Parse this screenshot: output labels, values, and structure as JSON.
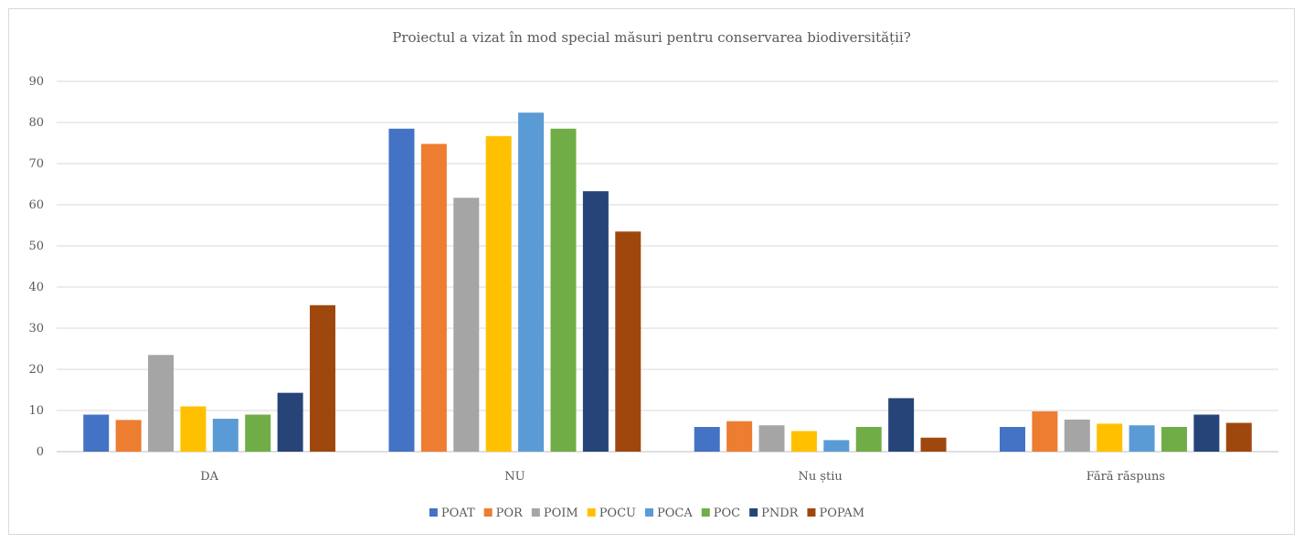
{
  "chart_data": {
    "type": "bar",
    "title": "Proiectul a vizat în mod special măsuri pentru conservarea biodiversității?",
    "xlabel": "",
    "ylabel": "",
    "ylim": [
      0,
      90
    ],
    "yticks": [
      0,
      10,
      20,
      30,
      40,
      50,
      60,
      70,
      80,
      90
    ],
    "grid": true,
    "legend_position": "bottom",
    "categories": [
      "DA",
      "NU",
      "Nu știu",
      "Fără răspuns"
    ],
    "series": [
      {
        "name": "POAT",
        "color": "#4472c4",
        "values": [
          9,
          78.5,
          6,
          6
        ]
      },
      {
        "name": "POR",
        "color": "#ed7d31",
        "values": [
          7.7,
          74.8,
          7.4,
          9.8
        ]
      },
      {
        "name": "POIM",
        "color": "#a5a5a5",
        "values": [
          23.5,
          61.7,
          6.4,
          7.8
        ]
      },
      {
        "name": "POCU",
        "color": "#ffc000",
        "values": [
          11,
          76.7,
          5,
          6.8
        ]
      },
      {
        "name": "POCA",
        "color": "#5b9bd5",
        "values": [
          8,
          82.4,
          2.8,
          6.4
        ]
      },
      {
        "name": "POC",
        "color": "#70ad47",
        "values": [
          9,
          78.5,
          6,
          6
        ]
      },
      {
        "name": "PNDR",
        "color": "#264478",
        "values": [
          14.3,
          63.3,
          13,
          9
        ]
      },
      {
        "name": "POPAM",
        "color": "#9e480e",
        "values": [
          35.6,
          53.5,
          3.4,
          7
        ]
      }
    ]
  }
}
